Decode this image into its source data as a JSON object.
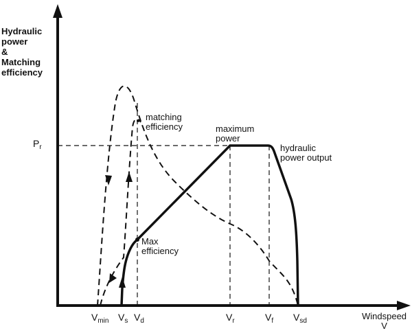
{
  "axes": {
    "y_label": [
      "Hydraulic",
      "power",
      "&",
      "Matching",
      "efficiency"
    ],
    "x_label": [
      "Windspeed",
      "V"
    ],
    "y_tick": {
      "main": "P",
      "sub": "r"
    },
    "x_ticks": [
      {
        "main": "V",
        "sub": "min"
      },
      {
        "main": "V",
        "sub": "s"
      },
      {
        "main": "V",
        "sub": "d"
      },
      {
        "main": "V",
        "sub": "r"
      },
      {
        "main": "V",
        "sub": "f"
      },
      {
        "main": "V",
        "sub": "sd"
      }
    ]
  },
  "annotations": {
    "matching_efficiency": [
      "matching",
      "efficiency"
    ],
    "maximum_power": [
      "maximum",
      "power"
    ],
    "hydraulic_power_output": [
      "hydraulic",
      "power output"
    ],
    "max_efficiency": [
      "Max",
      "efficiency"
    ]
  },
  "colors": {
    "ink": "#111111",
    "background": "#ffffff"
  }
}
